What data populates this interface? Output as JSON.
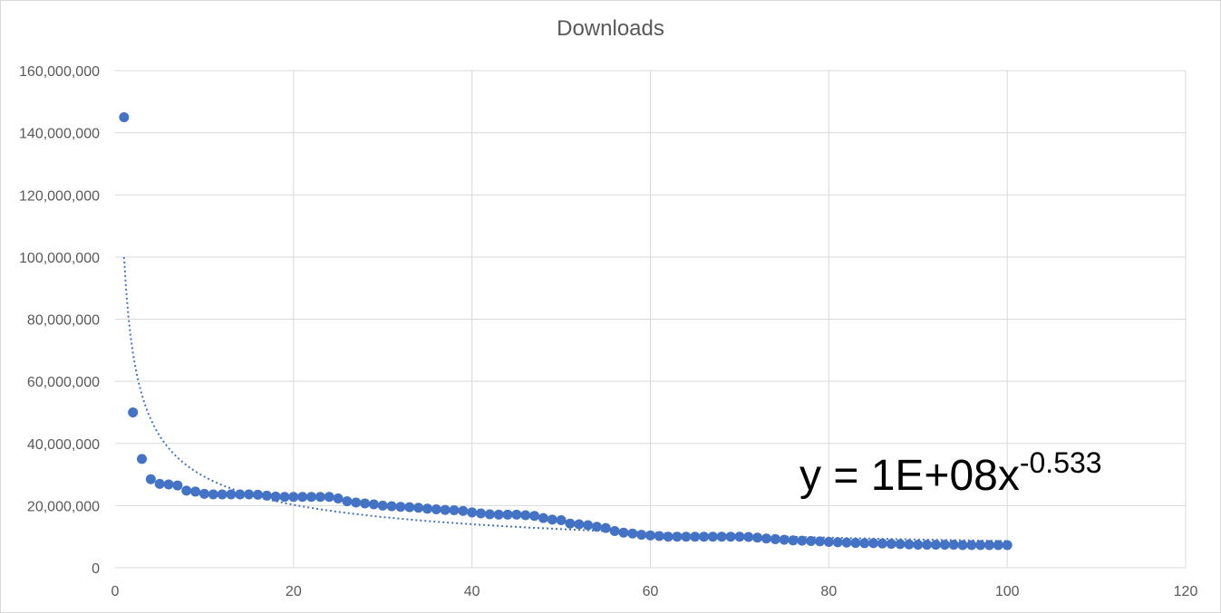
{
  "chart_data": {
    "type": "scatter",
    "title": "Downloads",
    "xlabel": "",
    "ylabel": "",
    "xlim": [
      0,
      120
    ],
    "ylim": [
      0,
      160000000
    ],
    "x_ticks": [
      0,
      20,
      40,
      60,
      80,
      100,
      120
    ],
    "x_tick_labels": [
      "0",
      "20",
      "40",
      "60",
      "80",
      "100",
      "120"
    ],
    "y_ticks": [
      0,
      20000000,
      40000000,
      60000000,
      80000000,
      100000000,
      120000000,
      140000000,
      160000000
    ],
    "y_tick_labels": [
      "0",
      "20,000,000",
      "40,000,000",
      "60,000,000",
      "80,000,000",
      "100,000,000",
      "120,000,000",
      "140,000,000",
      "160,000,000"
    ],
    "grid": true,
    "marker_color": "#4472c4",
    "trendline": {
      "type": "power",
      "coefficient": 100000000,
      "exponent": -0.533,
      "style": "dotted",
      "color": "#4472c4",
      "equation_prefix": "y = 1E+08x",
      "equation_exponent": "-0.533"
    },
    "series": [
      {
        "x": [
          1,
          2,
          3,
          4,
          5,
          6,
          7,
          8,
          9,
          10,
          11,
          12,
          13,
          14,
          15,
          16,
          17,
          18,
          19,
          20,
          21,
          22,
          23,
          24,
          25,
          26,
          27,
          28,
          29,
          30,
          31,
          32,
          33,
          34,
          35,
          36,
          37,
          38,
          39,
          40,
          41,
          42,
          43,
          44,
          45,
          46,
          47,
          48,
          49,
          50,
          51,
          52,
          53,
          54,
          55,
          56,
          57,
          58,
          59,
          60,
          61,
          62,
          63,
          64,
          65,
          66,
          67,
          68,
          69,
          70,
          71,
          72,
          73,
          74,
          75,
          76,
          77,
          78,
          79,
          80,
          81,
          82,
          83,
          84,
          85,
          86,
          87,
          88,
          89,
          90,
          91,
          92,
          93,
          94,
          95,
          96,
          97,
          98,
          99,
          100
        ],
        "y": [
          145000000,
          50000000,
          35000000,
          28500000,
          27000000,
          26800000,
          26500000,
          24800000,
          24500000,
          23800000,
          23600000,
          23600000,
          23600000,
          23600000,
          23600000,
          23500000,
          23200000,
          22900000,
          22800000,
          22800000,
          22800000,
          22800000,
          22800000,
          22800000,
          22300000,
          21400000,
          21000000,
          20700000,
          20400000,
          20000000,
          19800000,
          19600000,
          19500000,
          19300000,
          19000000,
          18800000,
          18600000,
          18500000,
          18300000,
          17800000,
          17500000,
          17200000,
          17100000,
          17100000,
          17100000,
          16900000,
          16700000,
          16000000,
          15500000,
          15300000,
          14200000,
          14000000,
          13700000,
          13200000,
          12800000,
          11800000,
          11300000,
          11000000,
          10600000,
          10400000,
          10200000,
          10000000,
          10000000,
          10000000,
          10000000,
          10000000,
          10000000,
          10000000,
          10000000,
          10000000,
          9900000,
          9700000,
          9400000,
          9200000,
          9000000,
          8800000,
          8700000,
          8600000,
          8500000,
          8300000,
          8200000,
          8100000,
          8000000,
          7900000,
          7900000,
          7800000,
          7700000,
          7600000,
          7500000,
          7400000,
          7400000,
          7400000,
          7400000,
          7400000,
          7300000,
          7300000,
          7300000,
          7300000,
          7300000,
          7300000
        ]
      }
    ]
  }
}
